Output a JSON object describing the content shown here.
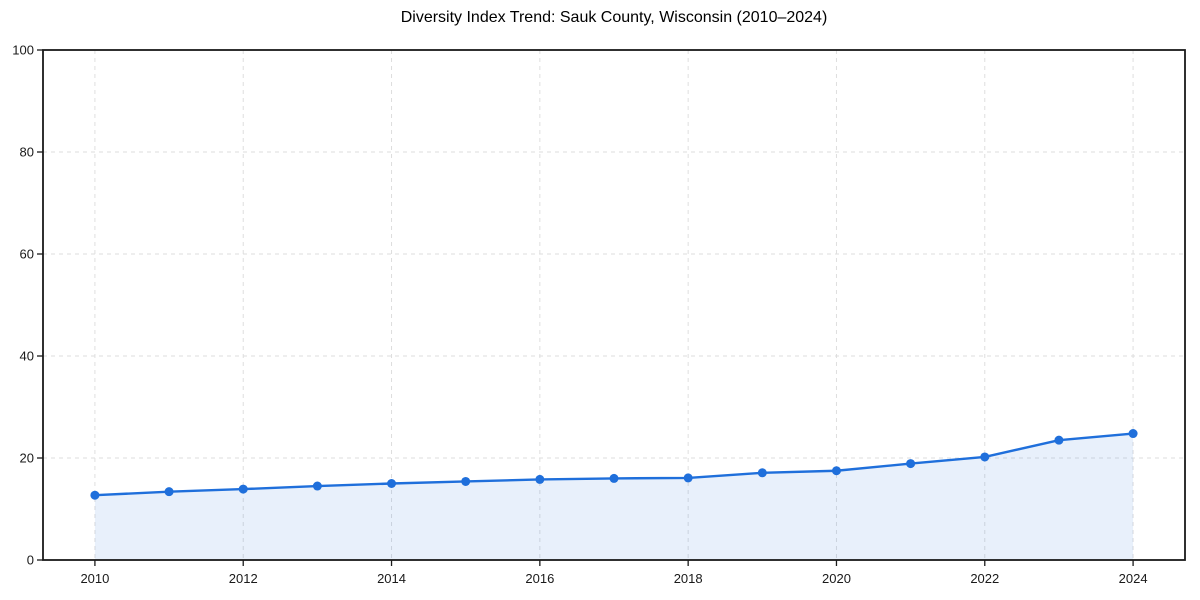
{
  "chart_data": {
    "type": "area",
    "title": "Diversity Index Trend: Sauk County, Wisconsin (2010–2024)",
    "xlabel": "",
    "ylabel": "",
    "x": [
      2010,
      2011,
      2012,
      2013,
      2014,
      2015,
      2016,
      2017,
      2018,
      2019,
      2020,
      2021,
      2022,
      2023,
      2024
    ],
    "values": [
      12.7,
      13.4,
      13.9,
      14.5,
      15.0,
      15.4,
      15.8,
      16.0,
      16.1,
      17.1,
      17.5,
      18.9,
      20.2,
      23.5,
      24.8
    ],
    "series_name": "Diversity Index",
    "xlim": [
      2009.3,
      2024.7
    ],
    "ylim": [
      0,
      100
    ],
    "x_ticks": [
      2010,
      2012,
      2014,
      2016,
      2018,
      2020,
      2022,
      2024
    ],
    "y_ticks": [
      0,
      20,
      40,
      60,
      80,
      100
    ],
    "grid": "dashed",
    "legend": "none",
    "colors": {
      "line": "#1f6fdb",
      "marker": "#1f6fdb",
      "fill": "rgba(31,111,219,0.10)",
      "grid_line": "#dedede",
      "spine": "#1a1a1a",
      "tick_label": "#1a1a1a",
      "title": "#000000",
      "background": "#ffffff"
    }
  }
}
